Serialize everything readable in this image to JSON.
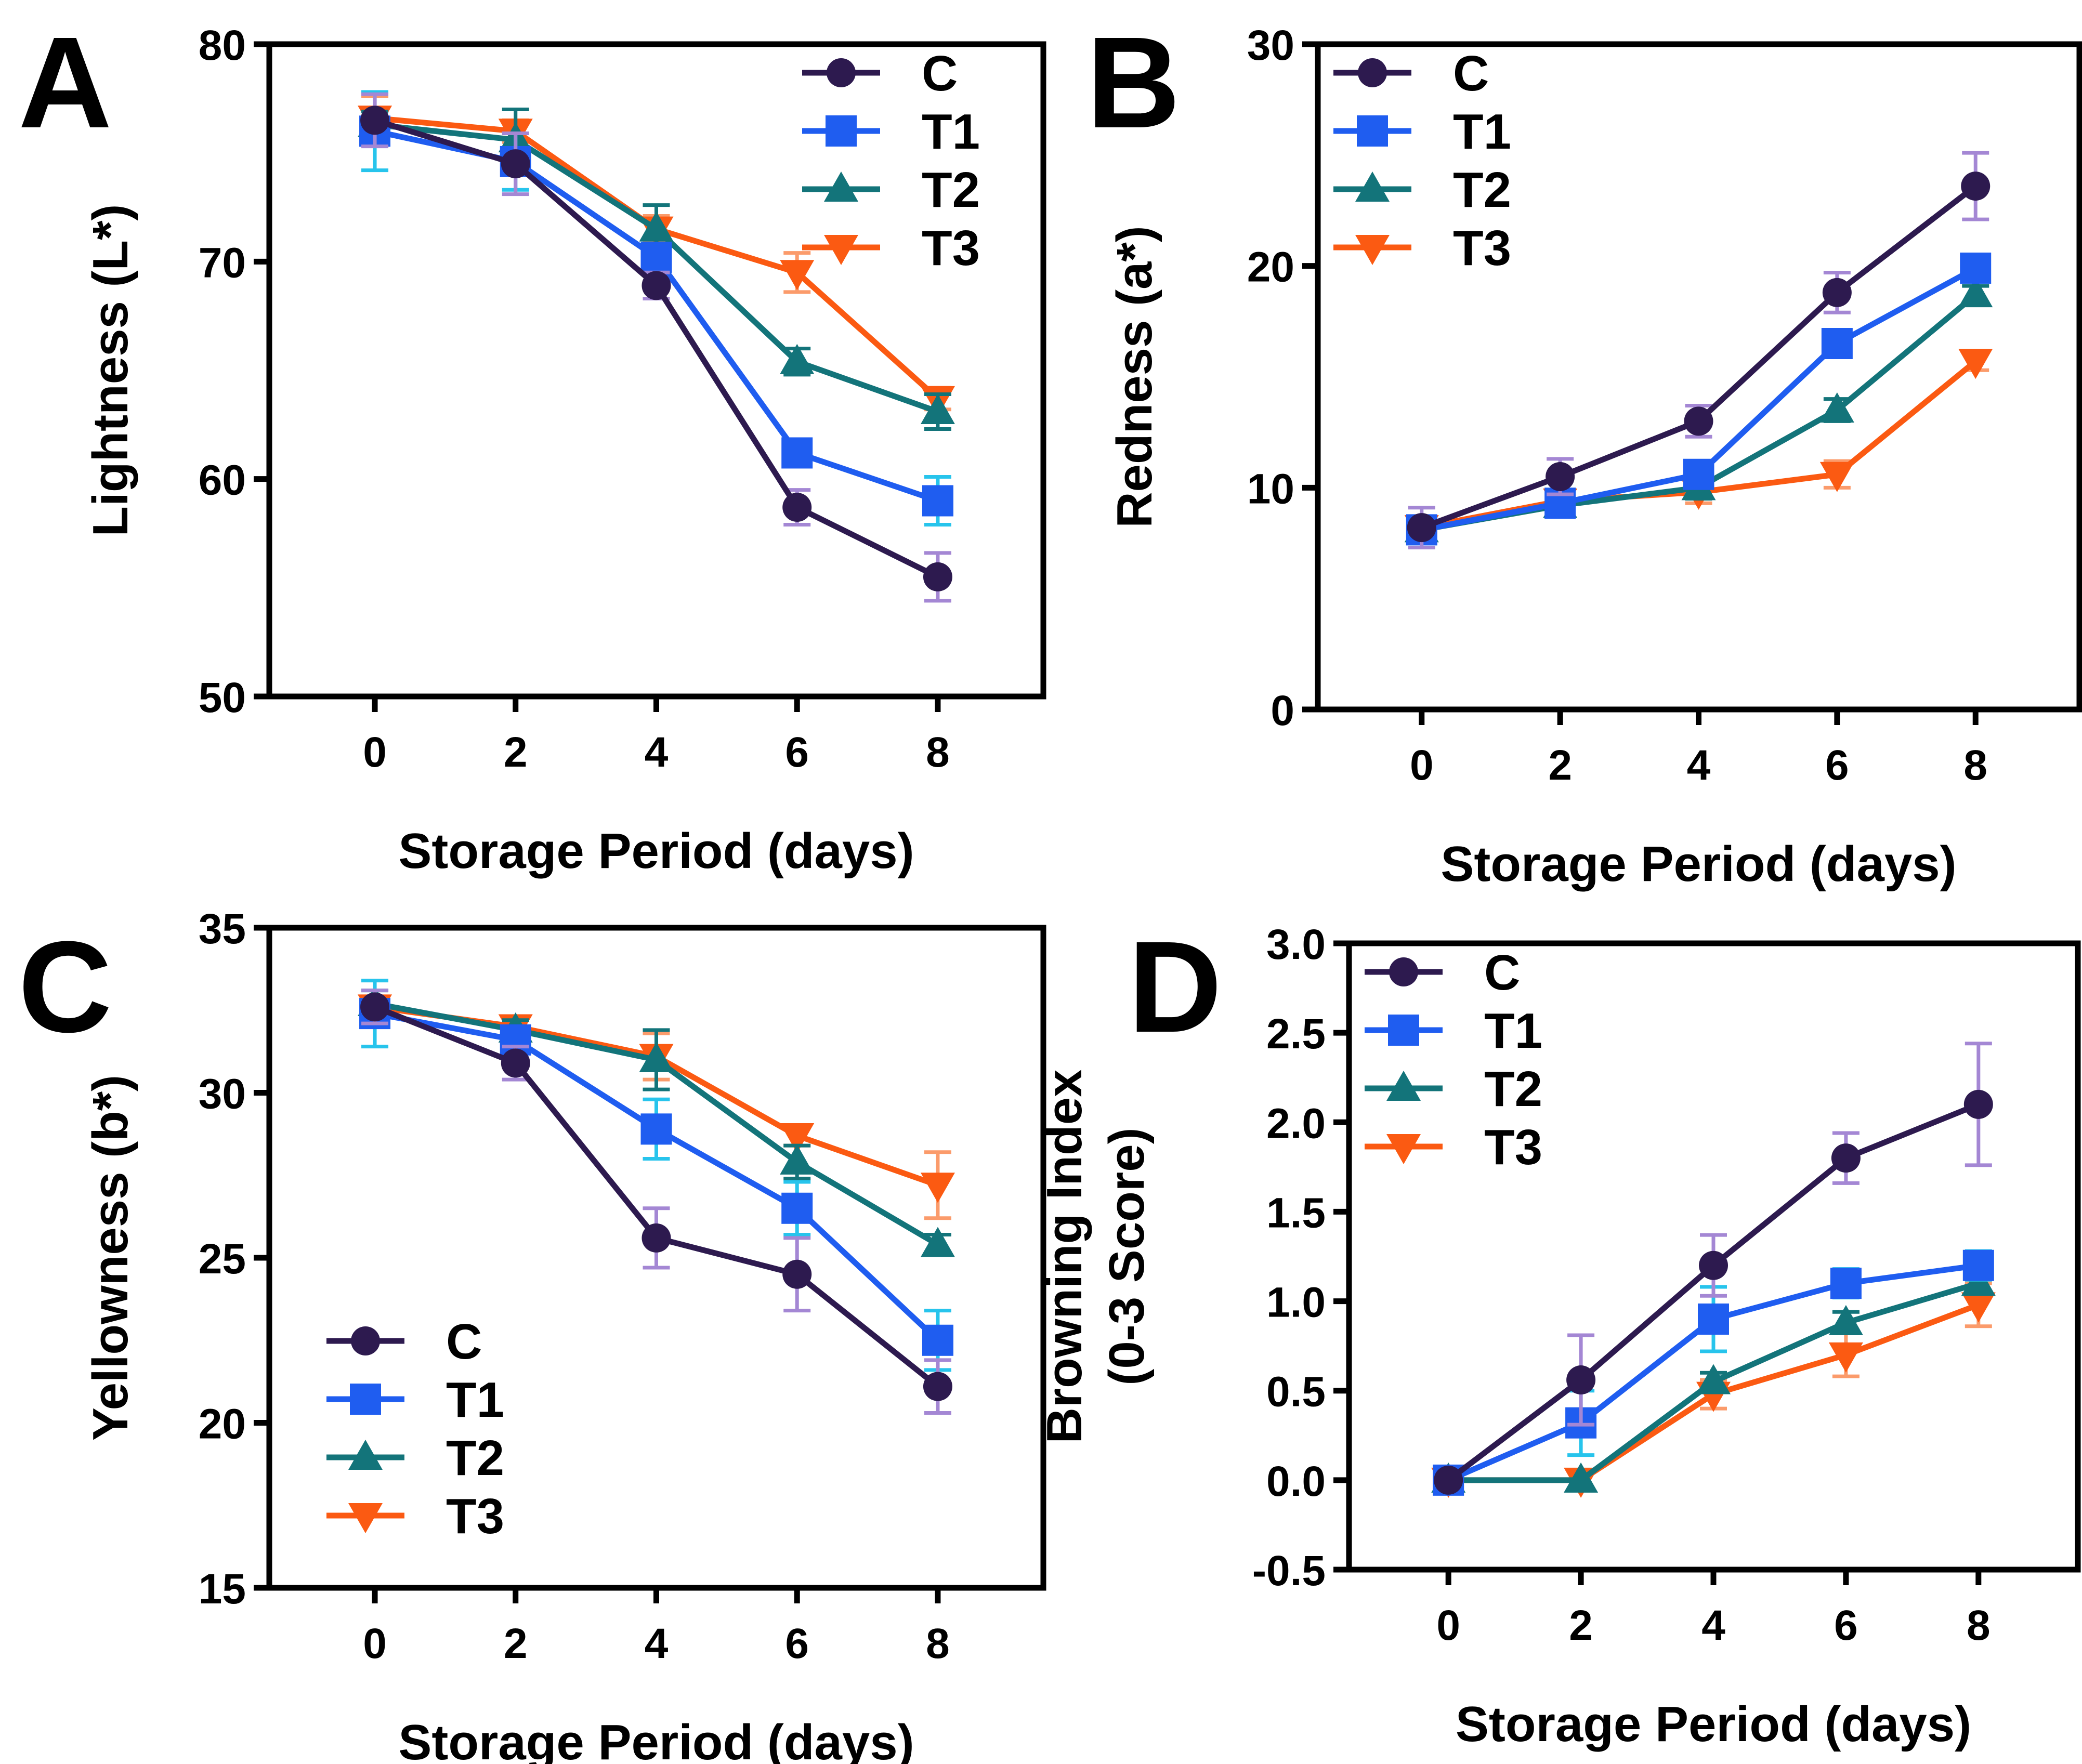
{
  "colors": {
    "C": "#2d1a4f",
    "T1": "#1f5df0",
    "T2": "#13747a",
    "T3": "#fb5a12"
  },
  "error_colors": {
    "C": "#a487d4",
    "T1": "#27c4ec",
    "T2": "#13747a",
    "T3": "#fb9b6b"
  },
  "chart_data": [
    {
      "panel": "A",
      "type": "line",
      "title": "",
      "xlabel": "Storage Period (days)",
      "ylabel": [
        "Lightness (L*)"
      ],
      "x": [
        0,
        2,
        4,
        6,
        8
      ],
      "xticks": [
        "0",
        "2",
        "4",
        "6",
        "8"
      ],
      "ylim": [
        50,
        80
      ],
      "yticks": [
        "50",
        "60",
        "70",
        "80"
      ],
      "legend_position": "top-right",
      "series": [
        {
          "name": "C",
          "marker": "circle",
          "values": [
            76.5,
            74.5,
            68.9,
            58.7,
            55.5
          ],
          "errors": [
            1.2,
            1.4,
            0.6,
            0.8,
            1.1
          ]
        },
        {
          "name": "T1",
          "marker": "square",
          "values": [
            76.0,
            74.6,
            70.2,
            61.2,
            59.0
          ],
          "errors": [
            1.8,
            1.3,
            0.6,
            0.5,
            1.1
          ]
        },
        {
          "name": "T2",
          "marker": "triangle-up",
          "values": [
            76.3,
            75.6,
            71.5,
            65.4,
            63.1
          ],
          "errors": [
            0.6,
            1.4,
            1.1,
            0.6,
            0.8
          ]
        },
        {
          "name": "T3",
          "marker": "triangle-down",
          "values": [
            76.6,
            76.0,
            71.5,
            69.5,
            63.7
          ],
          "errors": [
            1.0,
            0.5,
            0.6,
            0.9,
            0.5
          ]
        }
      ]
    },
    {
      "panel": "B",
      "type": "line",
      "title": "",
      "xlabel": "Storage Period (days)",
      "ylabel": [
        "Redness (a*)"
      ],
      "x": [
        0,
        2,
        4,
        6,
        8
      ],
      "xticks": [
        "0",
        "2",
        "4",
        "6",
        "8"
      ],
      "ylim": [
        0,
        30
      ],
      "yticks": [
        "0",
        "10",
        "20",
        "30"
      ],
      "legend_position": "top-left",
      "series": [
        {
          "name": "C",
          "marker": "circle",
          "values": [
            8.2,
            10.5,
            13.0,
            18.8,
            23.6
          ],
          "errors": [
            0.9,
            0.8,
            0.7,
            0.9,
            1.5
          ]
        },
        {
          "name": "T1",
          "marker": "square",
          "values": [
            8.1,
            9.3,
            10.6,
            16.5,
            19.9
          ],
          "errors": [
            0.5,
            0.5,
            0.6,
            0.5,
            0.5
          ]
        },
        {
          "name": "T2",
          "marker": "triangle-up",
          "values": [
            8.1,
            9.2,
            10.0,
            13.5,
            18.7
          ],
          "errors": [
            0.4,
            0.4,
            0.5,
            0.5,
            0.4
          ]
        },
        {
          "name": "T3",
          "marker": "triangle-down",
          "values": [
            8.2,
            9.4,
            9.8,
            10.6,
            15.7
          ],
          "errors": [
            0.4,
            0.4,
            0.5,
            0.6,
            0.4
          ]
        }
      ]
    },
    {
      "panel": "C",
      "type": "line",
      "title": "",
      "xlabel": "Storage Period (days)",
      "ylabel": [
        "Yellowness (b*)"
      ],
      "x": [
        0,
        2,
        4,
        6,
        8
      ],
      "xticks": [
        "0",
        "2",
        "4",
        "6",
        "8"
      ],
      "ylim": [
        15,
        35
      ],
      "yticks": [
        "15",
        "20",
        "25",
        "30",
        "35"
      ],
      "legend_position": "bottom-left",
      "series": [
        {
          "name": "C",
          "marker": "circle",
          "values": [
            32.6,
            30.9,
            25.6,
            24.5,
            21.1
          ],
          "errors": [
            0.5,
            0.5,
            0.9,
            1.1,
            0.8
          ]
        },
        {
          "name": "T1",
          "marker": "square",
          "values": [
            32.4,
            31.6,
            28.9,
            26.5,
            22.5
          ],
          "errors": [
            1.0,
            0.4,
            0.9,
            0.8,
            0.9
          ]
        },
        {
          "name": "T2",
          "marker": "triangle-up",
          "values": [
            32.7,
            31.9,
            31.0,
            27.9,
            25.4
          ],
          "errors": [
            0.4,
            0.3,
            0.9,
            0.5,
            0.3
          ]
        },
        {
          "name": "T3",
          "marker": "triangle-down",
          "values": [
            32.6,
            32.0,
            31.1,
            28.7,
            27.2
          ],
          "errors": [
            0.3,
            0.2,
            0.7,
            0.3,
            1.0
          ]
        }
      ]
    },
    {
      "panel": "D",
      "type": "line",
      "title": "",
      "xlabel": "Storage Period (days)",
      "ylabel": [
        "Browning Index",
        "(0-3 Score)"
      ],
      "x": [
        0,
        2,
        4,
        6,
        8
      ],
      "xticks": [
        "0",
        "2",
        "4",
        "6",
        "8"
      ],
      "ylim": [
        -0.5,
        3.0
      ],
      "yticks": [
        "-0.5",
        "0.0",
        "0.5",
        "1.0",
        "1.5",
        "2.0",
        "2.5",
        "3.0"
      ],
      "legend_position": "top-left",
      "series": [
        {
          "name": "C",
          "marker": "circle",
          "values": [
            0.0,
            0.56,
            1.2,
            1.8,
            2.1
          ],
          "errors": [
            0.0,
            0.25,
            0.17,
            0.14,
            0.34
          ]
        },
        {
          "name": "T1",
          "marker": "square",
          "values": [
            0.0,
            0.32,
            0.9,
            1.1,
            1.2
          ],
          "errors": [
            0.0,
            0.18,
            0.18,
            0.08,
            0.08
          ]
        },
        {
          "name": "T2",
          "marker": "triangle-up",
          "values": [
            0.0,
            0.0,
            0.55,
            0.88,
            1.1
          ],
          "errors": [
            0.0,
            0.0,
            0.05,
            0.06,
            0.06
          ]
        },
        {
          "name": "T3",
          "marker": "triangle-down",
          "values": [
            0.0,
            0.0,
            0.48,
            0.7,
            0.98
          ],
          "errors": [
            0.0,
            0.0,
            0.08,
            0.12,
            0.12
          ]
        }
      ]
    }
  ]
}
